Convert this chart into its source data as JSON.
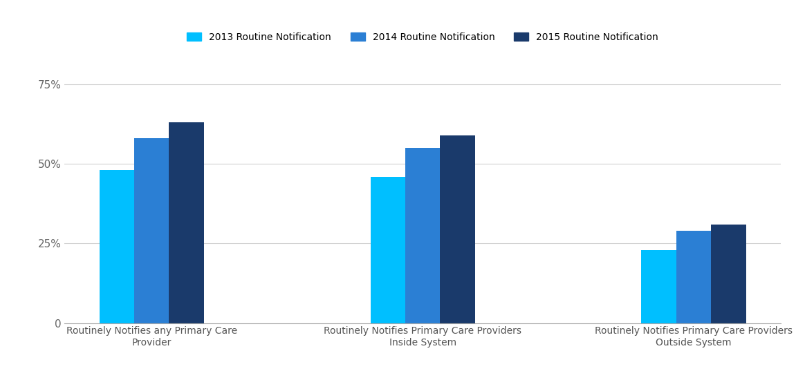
{
  "categories": [
    "Routinely Notifies any Primary Care\nProvider",
    "Routinely Notifies Primary Care Providers\nInside System",
    "Routinely Notifies Primary Care Providers\nOutside System"
  ],
  "series": [
    {
      "label": "2013 Routine Notification",
      "values": [
        0.48,
        0.46,
        0.23
      ],
      "color": "#00BFFF"
    },
    {
      "label": "2014 Routine Notification",
      "values": [
        0.58,
        0.55,
        0.29
      ],
      "color": "#2B7FD4"
    },
    {
      "label": "2015 Routine Notification",
      "values": [
        0.63,
        0.59,
        0.31
      ],
      "color": "#1A3A6B"
    }
  ],
  "ylim": [
    0,
    0.8
  ],
  "yticks": [
    0,
    0.25,
    0.5,
    0.75
  ],
  "ytick_labels": [
    "0",
    "25%",
    "50%",
    "75%"
  ],
  "background_color": "#ffffff",
  "grid_color": "#d0d0d0",
  "bar_width": 0.18,
  "legend_fontsize": 10,
  "tick_fontsize": 11,
  "label_fontsize": 10
}
